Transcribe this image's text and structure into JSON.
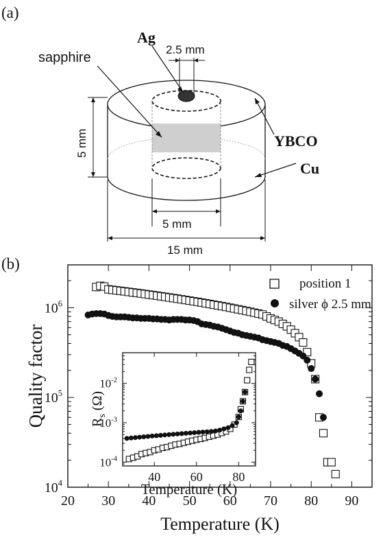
{
  "panel_a": {
    "label": "(a)",
    "text_ag": "Ag",
    "text_sapphire": "sapphire",
    "text_ybco": "YBCO",
    "text_cu": "Cu",
    "dim_hole": "2.5 mm",
    "dim_height": "5 mm",
    "dim_inner": "5 mm",
    "dim_outer": "15 mm"
  },
  "panel_b": {
    "label": "(b)"
  },
  "chart_data": [
    {
      "type": "scatter",
      "title": "",
      "xlabel": "Temperature (K)",
      "ylabel": "Quality factor",
      "xlim": [
        20,
        95
      ],
      "ylim": [
        10000,
        3000000
      ],
      "yscale": "log",
      "xticks": [
        "20",
        "30",
        "40",
        "50",
        "60",
        "70",
        "80",
        "90"
      ],
      "yticks": [
        {
          "base": "10",
          "exp": "4",
          "value": 10000
        },
        {
          "base": "10",
          "exp": "5",
          "value": 100000
        },
        {
          "base": "10",
          "exp": "6",
          "value": 1000000
        }
      ],
      "legend_position": "top-right",
      "series": [
        {
          "name": "position 1",
          "marker": "open-square",
          "x": [
            27,
            28,
            29,
            30,
            31,
            32,
            33,
            34,
            35,
            36,
            37,
            38,
            39,
            40,
            41,
            42,
            43,
            44,
            45,
            46,
            47,
            48,
            49,
            50,
            51,
            52,
            53,
            54,
            55,
            56,
            57,
            58,
            59,
            60,
            61,
            62,
            63,
            64,
            65,
            66,
            67,
            68,
            69,
            70,
            71,
            72,
            73,
            74,
            75,
            76,
            77,
            78,
            79,
            80,
            81,
            82,
            83,
            84,
            85,
            86
          ],
          "y": [
            1700000,
            1750000,
            1720000,
            1600000,
            1580000,
            1560000,
            1540000,
            1520000,
            1500000,
            1480000,
            1460000,
            1440000,
            1420000,
            1400000,
            1380000,
            1360000,
            1340000,
            1320000,
            1300000,
            1280000,
            1260000,
            1240000,
            1220000,
            1200000,
            1180000,
            1160000,
            1140000,
            1120000,
            1100000,
            1080000,
            1060000,
            1040000,
            1020000,
            1000000,
            980000,
            960000,
            940000,
            920000,
            900000,
            880000,
            860000,
            840000,
            800000,
            760000,
            730000,
            700000,
            660000,
            620000,
            570000,
            520000,
            470000,
            410000,
            320000,
            240000,
            160000,
            60000,
            40000,
            19000,
            19000,
            14000
          ]
        },
        {
          "name": "silver ϕ 2.5 mm",
          "marker": "filled-circle",
          "x": [
            25,
            26,
            27,
            28,
            29,
            30,
            31,
            32,
            33,
            34,
            35,
            36,
            37,
            38,
            39,
            40,
            41,
            42,
            43,
            44,
            45,
            46,
            47,
            48,
            49,
            50,
            51,
            52,
            53,
            54,
            55,
            56,
            57,
            58,
            59,
            60,
            61,
            62,
            63,
            64,
            65,
            66,
            67,
            68,
            69,
            70,
            71,
            72,
            73,
            74,
            75,
            76,
            77,
            78,
            79,
            80,
            81,
            82,
            83
          ],
          "y": [
            830000,
            850000,
            860000,
            860000,
            850000,
            820000,
            800000,
            790000,
            790000,
            790000,
            780000,
            770000,
            770000,
            760000,
            760000,
            760000,
            750000,
            750000,
            740000,
            740000,
            730000,
            740000,
            740000,
            740000,
            730000,
            730000,
            720000,
            700000,
            660000,
            650000,
            640000,
            620000,
            610000,
            590000,
            570000,
            550000,
            530000,
            520000,
            500000,
            490000,
            480000,
            470000,
            460000,
            440000,
            430000,
            420000,
            410000,
            400000,
            380000,
            370000,
            350000,
            330000,
            310000,
            290000,
            260000,
            210000,
            160000,
            110000,
            60000
          ]
        }
      ]
    },
    {
      "type": "scatter",
      "title": "",
      "xlabel": "Temperature (K)",
      "ylabel": "R_s (Ω)",
      "xlim": [
        25,
        88
      ],
      "ylim": [
        8e-05,
        0.06
      ],
      "yscale": "log",
      "xticks": [
        "40",
        "60",
        "80"
      ],
      "yticks": [
        {
          "base": "10",
          "exp": "-4",
          "value": 0.0001
        },
        {
          "base": "10",
          "exp": "-3",
          "value": 0.001
        },
        {
          "base": "10",
          "exp": "-2",
          "value": 0.01
        }
      ],
      "series": [
        {
          "marker": "open-square",
          "x": [
            28,
            30,
            32,
            34,
            36,
            38,
            40,
            42,
            44,
            46,
            48,
            50,
            52,
            54,
            56,
            58,
            60,
            62,
            64,
            66,
            68,
            70,
            72,
            74,
            76,
            78,
            80,
            81,
            82,
            83,
            84,
            85,
            86
          ],
          "y": [
            0.00012,
            0.00013,
            0.00014,
            0.00016,
            0.00017,
            0.00018,
            0.0002,
            0.00021,
            0.00023,
            0.00024,
            0.00026,
            0.00028,
            0.00029,
            0.00031,
            0.00033,
            0.00035,
            0.00037,
            0.00039,
            0.00041,
            0.00044,
            0.00047,
            0.0005,
            0.00055,
            0.0006,
            0.0007,
            0.0009,
            0.0014,
            0.0022,
            0.0035,
            0.006,
            0.012,
            0.022,
            0.035
          ]
        },
        {
          "marker": "filled-circle",
          "x": [
            27,
            29,
            31,
            33,
            35,
            37,
            39,
            41,
            43,
            45,
            47,
            49,
            51,
            53,
            55,
            57,
            59,
            61,
            63,
            65,
            67,
            69,
            71,
            73,
            75,
            77,
            79,
            80,
            81,
            82,
            83
          ],
          "y": [
            0.0004,
            0.00041,
            0.00042,
            0.00043,
            0.00044,
            0.00045,
            0.00046,
            0.00047,
            0.00048,
            0.00049,
            0.0005,
            0.00051,
            0.00052,
            0.00053,
            0.00054,
            0.00055,
            0.00056,
            0.00057,
            0.00058,
            0.00059,
            0.0006,
            0.00062,
            0.00065,
            0.0007,
            0.00075,
            0.00085,
            0.001,
            0.0014,
            0.002,
            0.0035,
            0.006
          ]
        }
      ]
    }
  ]
}
